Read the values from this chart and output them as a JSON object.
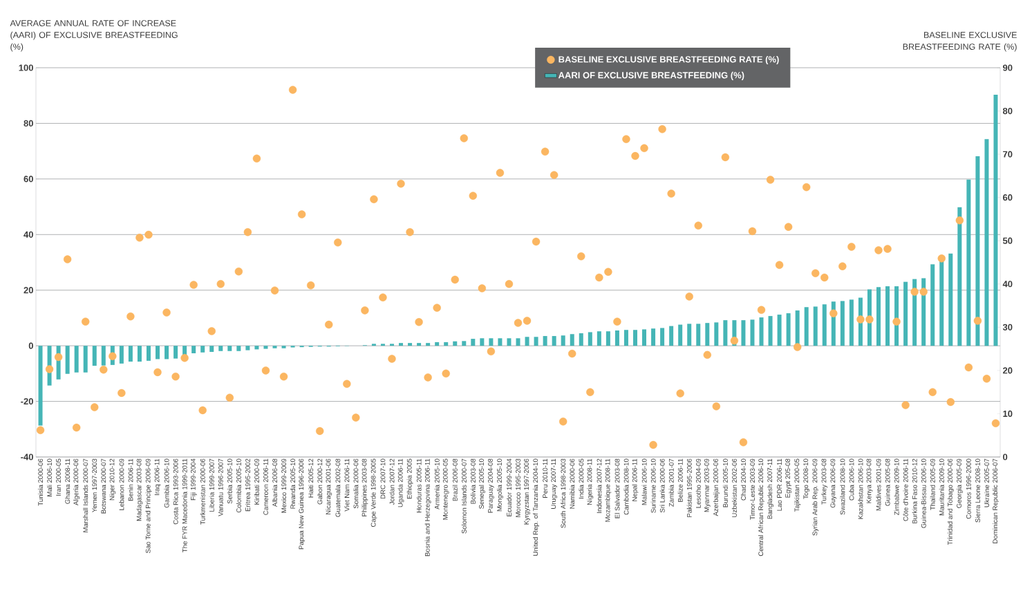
{
  "chart_data": {
    "type": "bar",
    "ylabel": "AVERAGE ANNUAL RATE OF INCREASE (AARI) OF EXCLUSIVE BREASTFEEDING (%)",
    "y2label": "BASELINE EXCLUSIVE BREASTFEEDING RATE (%)",
    "categories": [
      "Tunisia 2000-06",
      "Mali 2006-10",
      "Iran 2000-05",
      "Ghana 2008-11",
      "Algeria 2000-06",
      "Marshall Islands 2000-07",
      "Yemen 1997-2003",
      "Botswana 2000-07",
      "Niger 2010-12",
      "Lebanon 2000-09",
      "Benin 2006-11",
      "Madagascar 2003-08",
      "Sao Tome and Principe 2006-09",
      "Iraq 2006-11",
      "Gambia 2006-10",
      "Costa Rica 1993-2006",
      "The FYR Macedonia 1999-2011",
      "Fiji 1999-2004",
      "Turkmenistan 2000-06",
      "Liberia 1999-2007",
      "Vanuatu 1996-2007",
      "Serbia 2005-10",
      "Colombia 2005-10",
      "Eritrea 1995-2002",
      "Kiribati 2000-09",
      "Cameroon 2006-11",
      "Albania 2006-08",
      "Mexico 1999-2009",
      "Rwanda 2005-10",
      "Papua New Guinea 1996-2006",
      "Haiti 2005-12",
      "Gabon 2000-12",
      "Nicaragua 2001-06",
      "Guatemala 2002-08",
      "Viet Nam 2006-11",
      "Somalia 2000-06",
      "Philippines 2003-08",
      "Cape Verde 1998-2005",
      "DRC 2007-10",
      "Jordan 2007-12",
      "Uganda 2006-11",
      "Ethiopia 2005",
      "Honduras 2005-11",
      "Bosnia and Herzegovina 2006-11",
      "Armenia 2005-10",
      "Montenegro 2000-05",
      "Brazil 2006-08",
      "Solomon Islands 2000-07",
      "Bolivia 2003-08",
      "Senegal 2005-10",
      "Paraguay 2004-08",
      "Mongolia 2005-10",
      "Ecuador 1999-2004",
      "Morocco 1995-2003",
      "Kyrgyzstan 1997-2006",
      "United Rep. of Tanzania 2004-10",
      "Peru 2010-11",
      "Uruguay 2007-11",
      "South Africa 1998-2003",
      "Namibia 2000-06",
      "India 2000-05",
      "Nigeria 2008-11",
      "Indonesia 2007-12",
      "Mozambique 2008-11",
      "El Salvador 2003-08",
      "Cambodia 2008-10",
      "Nepal 2006-11",
      "Malawi 2006-10",
      "Suriname 2006-10",
      "Sri Lanka 2000-06",
      "Zambia 2001-07",
      "Belize 2006-11",
      "Pakistan 1995-2006",
      "Lesotho 2004-09",
      "Myanmar 2003-09",
      "Azerbaijan 2000-06",
      "Burundi 2005-10",
      "Uzbekistan 2002-06",
      "Chad 2004-10",
      "Timor-Leste 2003-09",
      "Central African Republic 2006-10",
      "Bangladesh 2007-11",
      "Lao PDR 2006-11",
      "Egypt 205-08",
      "Tajikistan 2000-05",
      "Togo 2008-10",
      "Syrian Arab Rep. 2006-09",
      "Turkey 2003-08",
      "Guyana 2006-09",
      "Swaziland 2008-10",
      "Cuba 2006-10",
      "Kazakhstan 2006-10",
      "Kenya 2003-08",
      "Maldives 2001-09",
      "Guinea 2005-08",
      "Zimbabwe 2009-10",
      "Côte d'Ivoire 2006-11",
      "Burkina Faso 2010-12",
      "Guinea-Bissau 2006-10",
      "Thailand 2005-09",
      "Mauritania 2009-10",
      "Trinidad and Tobago 2000-06",
      "Georgia 2005-09",
      "Comoros 1996-2000",
      "Sierra Leone 2008-10",
      "Ukraine 2005-07",
      "Dominican Republic 2006-07"
    ],
    "series": [
      {
        "name": "BASELINE EXCLUSIVE BREASTFEEDING RATE (%)",
        "type": "scatter",
        "axis": "y2",
        "marker": "circle",
        "color": "#fbb661",
        "values": [
          6.2,
          20.3,
          23.1,
          45.7,
          6.8,
          31.3,
          11.5,
          20.2,
          23.3,
          14.8,
          32.5,
          50.7,
          51.4,
          19.6,
          33.4,
          18.6,
          22.9,
          39.8,
          10.8,
          29.1,
          40.0,
          13.7,
          42.9,
          52.0,
          69.0,
          20.0,
          38.5,
          18.6,
          84.9,
          56.1,
          39.7,
          6.0,
          30.6,
          49.6,
          16.9,
          9.1,
          33.9,
          59.6,
          36.9,
          22.7,
          63.2,
          52.0,
          31.2,
          18.4,
          34.5,
          19.3,
          41.0,
          73.7,
          60.4,
          39.0,
          24.4,
          65.7,
          40.0,
          31.0,
          31.5,
          49.8,
          70.6,
          65.2,
          8.2,
          23.9,
          46.4,
          15.0,
          41.5,
          42.8,
          31.3,
          73.5,
          69.6,
          71.4,
          2.8,
          75.8,
          60.9,
          14.7,
          37.1,
          53.5,
          23.6,
          11.7,
          69.3,
          26.9,
          3.4,
          52.2,
          34.0,
          64.1,
          44.4,
          53.2,
          25.4,
          62.4,
          42.5,
          41.5,
          33.2,
          44.1,
          48.6,
          31.8,
          31.8,
          47.8,
          48.1,
          31.3,
          12.0,
          38.2,
          38.2,
          15.0,
          45.9,
          12.7,
          54.7,
          20.7,
          31.5,
          18.1,
          7.8
        ]
      },
      {
        "name": "AARI OF EXCLUSIVE BREASTFEEDING (%)",
        "color": "#45b5b6",
        "values": [
          -28.7,
          -14.3,
          -12.1,
          -10.1,
          -9.6,
          -9.6,
          -7.2,
          -7.1,
          -6.9,
          -6.4,
          -5.7,
          -5.7,
          -5.4,
          -4.8,
          -4.8,
          -4.6,
          -3.4,
          -2.7,
          -2.4,
          -2.2,
          -1.9,
          -1.9,
          -1.9,
          -1.6,
          -1.3,
          -1.1,
          -0.9,
          -0.9,
          -0.6,
          -0.5,
          -0.4,
          -0.3,
          -0.3,
          -0.2,
          -0.1,
          null,
          0.2,
          0.7,
          0.7,
          0.7,
          1.0,
          1.0,
          1.0,
          1.0,
          1.3,
          1.3,
          1.6,
          1.7,
          2.5,
          2.7,
          2.7,
          2.7,
          2.7,
          2.7,
          3.2,
          3.2,
          3.5,
          3.5,
          3.7,
          4.2,
          4.5,
          4.9,
          5.2,
          5.2,
          5.5,
          5.7,
          5.7,
          5.9,
          6.2,
          6.4,
          7.1,
          7.6,
          7.9,
          7.9,
          8.2,
          8.4,
          9.2,
          9.2,
          9.2,
          9.4,
          10.2,
          10.7,
          11.2,
          11.7,
          12.7,
          13.9,
          14.1,
          14.9,
          15.9,
          16.1,
          16.6,
          17.3,
          20.3,
          21.1,
          21.4,
          21.4,
          23.0,
          24.0,
          24.3,
          29.3,
          30.5,
          33.2,
          49.8,
          59.8,
          68.2,
          74.3,
          90.3
        ]
      }
    ],
    "ylim": [
      -40,
      100
    ],
    "yticks": [
      -40,
      -20,
      0,
      20,
      40,
      60,
      80,
      100
    ],
    "y2lim": [
      0,
      90
    ],
    "y2ticks": [
      0,
      10,
      20,
      30,
      40,
      50,
      60,
      70,
      80,
      90
    ],
    "grid": "y",
    "legend": "top"
  }
}
